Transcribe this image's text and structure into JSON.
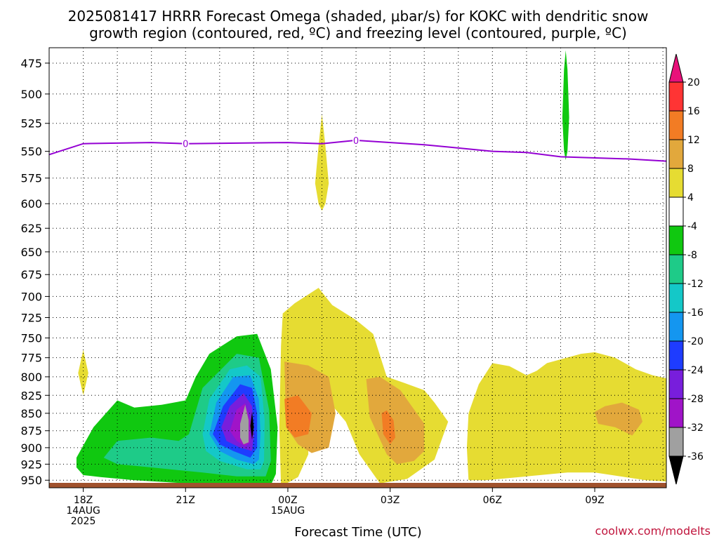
{
  "title": {
    "line1": "2025081417 HRRR Forecast Omega (shaded, μbar/s) for KOKC with dendritic snow",
    "line2": "growth region (contoured, red, ºC) and freezing level (contoured, purple, ºC)"
  },
  "xlabel": "Forecast Time (UTC)",
  "credit": "coolwx.com/modelts",
  "chart_data": {
    "type": "heatmap",
    "ylabel": "",
    "y_axis": {
      "ticks": [
        475,
        500,
        525,
        550,
        575,
        600,
        625,
        650,
        675,
        700,
        725,
        750,
        775,
        800,
        825,
        850,
        875,
        900,
        925,
        950
      ],
      "range": [
        463,
        962
      ],
      "inverted": true,
      "scale": "log-pressure"
    },
    "x_axis": {
      "range_hours": [
        -1,
        17.1
      ],
      "ticks": [
        {
          "hour": 0,
          "lines": [
            "18Z",
            "14AUG",
            "2025"
          ]
        },
        {
          "hour": 3,
          "lines": [
            "21Z"
          ]
        },
        {
          "hour": 6,
          "lines": [
            "00Z",
            "15AUG"
          ]
        },
        {
          "hour": 9,
          "lines": [
            "03Z"
          ]
        },
        {
          "hour": 12,
          "lines": [
            "06Z"
          ]
        },
        {
          "hour": 15,
          "lines": [
            "09Z"
          ]
        }
      ]
    },
    "grid": true,
    "colorbar": {
      "labels": [
        "20",
        "16",
        "12",
        "8",
        "4",
        "-4",
        "-8",
        "-12",
        "-16",
        "-20",
        "-24",
        "-28",
        "-32",
        "-36"
      ],
      "bins": [
        {
          "from": 20,
          "to": 24,
          "color": "#e8117a"
        },
        {
          "from": 16,
          "to": 20,
          "color": "#ff3434"
        },
        {
          "from": 12,
          "to": 16,
          "color": "#f27c24"
        },
        {
          "from": 8,
          "to": 12,
          "color": "#e2a83c"
        },
        {
          "from": 4,
          "to": 8,
          "color": "#e6dc32"
        },
        {
          "from": -4,
          "to": 4,
          "color": "#ffffff"
        },
        {
          "from": -8,
          "to": -4,
          "color": "#10c810"
        },
        {
          "from": -12,
          "to": -8,
          "color": "#1ecb88"
        },
        {
          "from": -16,
          "to": -12,
          "color": "#14c8c8"
        },
        {
          "from": -20,
          "to": -16,
          "color": "#1496f0"
        },
        {
          "from": -24,
          "to": -20,
          "color": "#1e3cff"
        },
        {
          "from": -28,
          "to": -24,
          "color": "#781edc"
        },
        {
          "from": -32,
          "to": -28,
          "color": "#a014c8"
        },
        {
          "from": -36,
          "to": -32,
          "color": "#a0a0a0"
        },
        {
          "from": -40,
          "to": -36,
          "color": "#000000"
        }
      ]
    },
    "freezing_level": {
      "color": "#9400d3",
      "label": "0",
      "label_hours": [
        3,
        8
      ],
      "points": [
        [
          -1,
          553
        ],
        [
          0,
          543
        ],
        [
          2,
          542
        ],
        [
          3,
          543
        ],
        [
          6,
          542
        ],
        [
          7,
          543
        ],
        [
          8,
          540
        ],
        [
          10,
          544
        ],
        [
          11,
          547
        ],
        [
          12,
          550
        ],
        [
          13,
          551
        ],
        [
          14,
          555
        ],
        [
          16,
          557
        ],
        [
          17.1,
          559
        ]
      ]
    },
    "omega_regions": [
      {
        "level": 4,
        "color": "#e6dc32",
        "points": [
          [
            6.8,
            580
          ],
          [
            6.9,
            545
          ],
          [
            7,
            517
          ],
          [
            7.1,
            545
          ],
          [
            7.2,
            580
          ],
          [
            7.1,
            600
          ],
          [
            7,
            607
          ],
          [
            6.9,
            600
          ]
        ]
      },
      {
        "level": -8,
        "color": "#10c810",
        "points": [
          [
            14.05,
            520
          ],
          [
            14.1,
            480
          ],
          [
            14.15,
            465
          ],
          [
            14.2,
            480
          ],
          [
            14.25,
            520
          ],
          [
            14.2,
            550
          ],
          [
            14.15,
            558
          ],
          [
            14.1,
            550
          ]
        ]
      },
      {
        "level": 4,
        "color": "#e6dc32",
        "points": [
          [
            -0.15,
            795
          ],
          [
            -0.05,
            775
          ],
          [
            0,
            765
          ],
          [
            0.05,
            775
          ],
          [
            0.15,
            795
          ],
          [
            0.05,
            815
          ],
          [
            0,
            825
          ],
          [
            -0.05,
            815
          ]
        ]
      },
      {
        "level": -8,
        "color": "#10c810",
        "points": [
          [
            -0.2,
            930
          ],
          [
            -0.2,
            915
          ],
          [
            0.3,
            870
          ],
          [
            1,
            832
          ],
          [
            1.5,
            842
          ],
          [
            2.3,
            838
          ],
          [
            3,
            832
          ],
          [
            3.3,
            800
          ],
          [
            3.7,
            770
          ],
          [
            4.5,
            748
          ],
          [
            5.1,
            745
          ],
          [
            5.5,
            790
          ],
          [
            5.7,
            870
          ],
          [
            5.65,
            940
          ],
          [
            5.5,
            958
          ],
          [
            4,
            958
          ],
          [
            3,
            955
          ],
          [
            1.5,
            950
          ],
          [
            0.5,
            945
          ],
          [
            0,
            942
          ]
        ]
      },
      {
        "level": -12,
        "color": "#1ecb88",
        "points": [
          [
            0.6,
            915
          ],
          [
            1,
            890
          ],
          [
            2,
            885
          ],
          [
            2.8,
            890
          ],
          [
            3.1,
            880
          ],
          [
            3.5,
            815
          ],
          [
            4.5,
            770
          ],
          [
            5.15,
            775
          ],
          [
            5.45,
            845
          ],
          [
            5.5,
            920
          ],
          [
            5.35,
            944
          ],
          [
            4.5,
            944
          ],
          [
            3.5,
            938
          ],
          [
            2,
            930
          ],
          [
            1,
            925
          ]
        ]
      },
      {
        "level": -16,
        "color": "#14c8c8",
        "points": [
          [
            3.5,
            880
          ],
          [
            3.7,
            830
          ],
          [
            4.3,
            790
          ],
          [
            4.8,
            785
          ],
          [
            5.2,
            800
          ],
          [
            5.32,
            860
          ],
          [
            5.3,
            920
          ],
          [
            5.2,
            933
          ],
          [
            4.8,
            933
          ],
          [
            4,
            920
          ],
          [
            3.6,
            905
          ]
        ]
      },
      {
        "level": -20,
        "color": "#1496f0",
        "points": [
          [
            3.7,
            880
          ],
          [
            3.9,
            835
          ],
          [
            4.4,
            800
          ],
          [
            4.9,
            798
          ],
          [
            5.15,
            830
          ],
          [
            5.2,
            880
          ],
          [
            5.15,
            918
          ],
          [
            5,
            925
          ],
          [
            4.5,
            918
          ],
          [
            4,
            905
          ]
        ]
      },
      {
        "level": -24,
        "color": "#1e3cff",
        "points": [
          [
            3.8,
            880
          ],
          [
            4.1,
            840
          ],
          [
            4.6,
            810
          ],
          [
            4.95,
            815
          ],
          [
            5.1,
            850
          ],
          [
            5.1,
            900
          ],
          [
            4.9,
            915
          ],
          [
            4.4,
            905
          ],
          [
            4,
            895
          ]
        ]
      },
      {
        "level": -28,
        "color": "#781edc",
        "points": [
          [
            4.05,
            870
          ],
          [
            4.3,
            840
          ],
          [
            4.7,
            822
          ],
          [
            4.95,
            840
          ],
          [
            5,
            880
          ],
          [
            4.95,
            905
          ],
          [
            4.6,
            900
          ],
          [
            4.2,
            890
          ]
        ]
      },
      {
        "level": -32,
        "color": "#a014c8",
        "points": [
          [
            4.3,
            875
          ],
          [
            4.5,
            845
          ],
          [
            4.75,
            836
          ],
          [
            4.9,
            860
          ],
          [
            4.9,
            892
          ],
          [
            4.75,
            898
          ],
          [
            4.5,
            890
          ]
        ]
      },
      {
        "level": -36,
        "color": "#a0a0a0",
        "points": [
          [
            4.6,
            865
          ],
          [
            4.75,
            838
          ],
          [
            4.85,
            860
          ],
          [
            4.85,
            892
          ],
          [
            4.7,
            895
          ],
          [
            4.6,
            885
          ]
        ]
      },
      {
        "level": -40,
        "color": "#000000",
        "points": [
          [
            4.9,
            868
          ],
          [
            4.95,
            848
          ],
          [
            5,
            870
          ],
          [
            4.95,
            888
          ]
        ]
      },
      {
        "level": 4,
        "color": "#e6dc32",
        "points": [
          [
            5.8,
            960
          ],
          [
            5.75,
            870
          ],
          [
            5.8,
            760
          ],
          [
            5.85,
            720
          ],
          [
            6.2,
            708
          ],
          [
            6.9,
            690
          ],
          [
            7.3,
            710
          ],
          [
            8,
            728
          ],
          [
            8.5,
            745
          ],
          [
            8.9,
            800
          ],
          [
            9.4,
            808
          ],
          [
            10,
            818
          ],
          [
            10.3,
            835
          ],
          [
            10.7,
            862
          ],
          [
            10.3,
            918
          ],
          [
            9.5,
            948
          ],
          [
            8.7,
            955
          ],
          [
            8.1,
            910
          ],
          [
            7.7,
            862
          ],
          [
            7.1,
            828
          ],
          [
            6.6,
            870
          ],
          [
            6.6,
            910
          ],
          [
            6.3,
            945
          ]
        ]
      },
      {
        "level": 4,
        "color": "#e6dc32",
        "points": [
          [
            11.3,
            950
          ],
          [
            11.25,
            900
          ],
          [
            11.3,
            850
          ],
          [
            11.6,
            810
          ],
          [
            12,
            782
          ],
          [
            12.5,
            786
          ],
          [
            13,
            798
          ],
          [
            13.3,
            792
          ],
          [
            13.6,
            782
          ],
          [
            14.1,
            776
          ],
          [
            14.6,
            770
          ],
          [
            15,
            768
          ],
          [
            15.6,
            775
          ],
          [
            16.2,
            790
          ],
          [
            16.7,
            798
          ],
          [
            17.1,
            802
          ],
          [
            17.1,
            952
          ],
          [
            16.5,
            950
          ],
          [
            15,
            938
          ],
          [
            14.2,
            938
          ],
          [
            12.8,
            945
          ],
          [
            11.8,
            950
          ]
        ]
      },
      {
        "level": 8,
        "color": "#e2a83c",
        "points": [
          [
            5.9,
            780
          ],
          [
            6.6,
            785
          ],
          [
            7.2,
            800
          ],
          [
            7.4,
            850
          ],
          [
            7.2,
            900
          ],
          [
            6.7,
            908
          ],
          [
            6.3,
            895
          ],
          [
            5.95,
            870
          ]
        ]
      },
      {
        "level": 12,
        "color": "#f27c24",
        "points": [
          [
            5.9,
            830
          ],
          [
            6.3,
            825
          ],
          [
            6.7,
            850
          ],
          [
            6.6,
            880
          ],
          [
            6.2,
            885
          ],
          [
            5.95,
            870
          ]
        ]
      },
      {
        "level": 8,
        "color": "#e2a83c",
        "points": [
          [
            8.3,
            803
          ],
          [
            8.7,
            800
          ],
          [
            9.3,
            818
          ],
          [
            10,
            865
          ],
          [
            10,
            905
          ],
          [
            9.7,
            920
          ],
          [
            9.2,
            925
          ],
          [
            8.9,
            910
          ],
          [
            8.4,
            855
          ]
        ]
      },
      {
        "level": 12,
        "color": "#f27c24",
        "points": [
          [
            8.75,
            850
          ],
          [
            8.9,
            846
          ],
          [
            9.1,
            860
          ],
          [
            9.15,
            885
          ],
          [
            9,
            895
          ],
          [
            8.8,
            880
          ]
        ]
      },
      {
        "level": 8,
        "color": "#e2a83c",
        "points": [
          [
            15,
            848
          ],
          [
            15.3,
            840
          ],
          [
            15.8,
            835
          ],
          [
            16.3,
            845
          ],
          [
            16.4,
            862
          ],
          [
            16.1,
            882
          ],
          [
            15.6,
            870
          ],
          [
            15.1,
            865
          ]
        ]
      }
    ],
    "ground": {
      "color": "#a0522d"
    }
  }
}
